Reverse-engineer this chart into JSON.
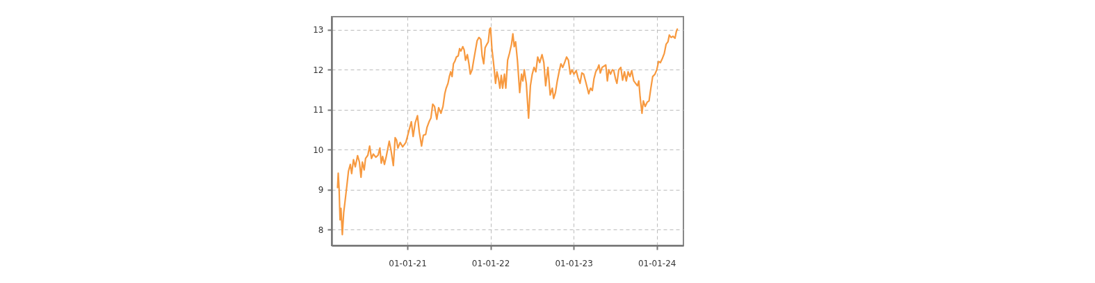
{
  "chart_data": {
    "type": "line",
    "xlim": [
      "2020-02-03",
      "2024-04-27"
    ],
    "xticks": [
      {
        "value": "2021-01-01",
        "label": "01-01-21"
      },
      {
        "value": "2022-01-01",
        "label": "01-01-22"
      },
      {
        "value": "2023-01-01",
        "label": "01-01-23"
      },
      {
        "value": "2024-01-01",
        "label": "01-01-24"
      }
    ],
    "ylim": [
      7.6,
      13.33
    ],
    "yticks": [
      8,
      9,
      10,
      11,
      12,
      13
    ],
    "grid": true,
    "line_style": "solid",
    "x": [
      "2020-02-29",
      "2020-03-03",
      "2020-03-07",
      "2020-03-11",
      "2020-03-15",
      "2020-03-21",
      "2020-03-27",
      "2020-04-02",
      "2020-04-09",
      "2020-04-17",
      "2020-04-25",
      "2020-05-01",
      "2020-05-09",
      "2020-05-17",
      "2020-05-27",
      "2020-06-04",
      "2020-06-11",
      "2020-06-17",
      "2020-06-25",
      "2020-07-01",
      "2020-07-11",
      "2020-07-19",
      "2020-07-27",
      "2020-08-04",
      "2020-08-15",
      "2020-08-25",
      "2020-09-02",
      "2020-09-08",
      "2020-09-14",
      "2020-09-22",
      "2020-09-30",
      "2020-10-13",
      "2020-10-21",
      "2020-10-31",
      "2020-11-08",
      "2020-11-14",
      "2020-11-20",
      "2020-11-30",
      "2020-12-11",
      "2020-12-25",
      "2021-01-06",
      "2021-01-18",
      "2021-01-26",
      "2021-02-04",
      "2021-02-14",
      "2021-02-22",
      "2021-03-04",
      "2021-03-12",
      "2021-03-22",
      "2021-03-28",
      "2021-04-06",
      "2021-04-14",
      "2021-04-22",
      "2021-04-30",
      "2021-05-10",
      "2021-05-18",
      "2021-05-28",
      "2021-06-06",
      "2021-06-14",
      "2021-06-20",
      "2021-06-28",
      "2021-07-04",
      "2021-07-10",
      "2021-07-16",
      "2021-07-22",
      "2021-07-28",
      "2021-08-04",
      "2021-08-12",
      "2021-08-18",
      "2021-08-24",
      "2021-09-01",
      "2021-09-07",
      "2021-09-13",
      "2021-09-21",
      "2021-09-28",
      "2021-10-04",
      "2021-10-12",
      "2021-10-18",
      "2021-10-26",
      "2021-11-03",
      "2021-11-11",
      "2021-11-19",
      "2021-11-25",
      "2021-12-02",
      "2021-12-08",
      "2021-12-16",
      "2021-12-22",
      "2021-12-28",
      "2022-01-01",
      "2022-01-07",
      "2022-01-15",
      "2022-01-23",
      "2022-01-29",
      "2022-02-05",
      "2022-02-11",
      "2022-02-17",
      "2022-02-23",
      "2022-03-03",
      "2022-03-09",
      "2022-03-17",
      "2022-03-25",
      "2022-04-03",
      "2022-04-09",
      "2022-04-15",
      "2022-04-21",
      "2022-04-29",
      "2022-05-09",
      "2022-05-17",
      "2022-05-23",
      "2022-05-29",
      "2022-06-07",
      "2022-06-17",
      "2022-06-25",
      "2022-07-03",
      "2022-07-11",
      "2022-07-19",
      "2022-07-27",
      "2022-08-05",
      "2022-08-15",
      "2022-08-23",
      "2022-08-31",
      "2022-09-10",
      "2022-09-20",
      "2022-09-29",
      "2022-10-05",
      "2022-10-13",
      "2022-10-21",
      "2022-10-29",
      "2022-11-06",
      "2022-11-14",
      "2022-11-22",
      "2022-12-01",
      "2022-12-09",
      "2022-12-17",
      "2022-12-25",
      "2023-01-02",
      "2023-01-12",
      "2023-01-20",
      "2023-01-29",
      "2023-02-06",
      "2023-02-14",
      "2023-02-22",
      "2023-03-02",
      "2023-03-08",
      "2023-03-16",
      "2023-03-24",
      "2023-03-31",
      "2023-04-08",
      "2023-04-16",
      "2023-04-22",
      "2023-04-28",
      "2023-05-06",
      "2023-05-14",
      "2023-05-22",
      "2023-05-29",
      "2023-06-04",
      "2023-06-12",
      "2023-06-20",
      "2023-06-26",
      "2023-07-04",
      "2023-07-10",
      "2023-07-18",
      "2023-07-27",
      "2023-08-04",
      "2023-08-12",
      "2023-08-20",
      "2023-08-28",
      "2023-09-05",
      "2023-09-13",
      "2023-09-22",
      "2023-09-30",
      "2023-10-08",
      "2023-10-14",
      "2023-10-20",
      "2023-10-28",
      "2023-11-03",
      "2023-11-11",
      "2023-11-20",
      "2023-11-28",
      "2023-12-06",
      "2023-12-14",
      "2023-12-24",
      "2024-01-01",
      "2024-01-09",
      "2024-01-17",
      "2024-01-26",
      "2024-02-03",
      "2024-02-11",
      "2024-02-19",
      "2024-02-25",
      "2024-03-04",
      "2024-03-12",
      "2024-03-21",
      "2024-03-27",
      "2024-03-31"
    ],
    "series": [
      {
        "color": "#f7993f",
        "values": [
          9.05,
          9.41,
          9.0,
          8.24,
          8.53,
          7.87,
          8.42,
          8.71,
          9.05,
          9.46,
          9.63,
          9.4,
          9.75,
          9.57,
          9.85,
          9.69,
          9.31,
          9.69,
          9.49,
          9.78,
          9.86,
          10.09,
          9.78,
          9.89,
          9.81,
          9.86,
          10.04,
          9.66,
          9.83,
          9.63,
          9.83,
          10.21,
          9.98,
          9.6,
          10.3,
          10.24,
          10.04,
          10.18,
          10.07,
          10.18,
          10.44,
          10.7,
          10.33,
          10.67,
          10.85,
          10.44,
          10.09,
          10.36,
          10.38,
          10.56,
          10.7,
          10.79,
          11.14,
          11.08,
          10.76,
          11.05,
          10.91,
          11.08,
          11.4,
          11.54,
          11.66,
          11.83,
          11.95,
          11.83,
          12.15,
          12.21,
          12.32,
          12.35,
          12.53,
          12.47,
          12.58,
          12.5,
          12.24,
          12.38,
          12.15,
          11.89,
          12.0,
          12.21,
          12.47,
          12.73,
          12.81,
          12.76,
          12.35,
          12.15,
          12.55,
          12.64,
          12.7,
          13.02,
          13.05,
          12.53,
          12.12,
          11.66,
          11.95,
          11.77,
          11.54,
          11.86,
          11.54,
          11.89,
          11.54,
          12.24,
          12.41,
          12.64,
          12.9,
          12.58,
          12.7,
          12.24,
          11.43,
          11.89,
          11.72,
          12.0,
          11.66,
          10.79,
          11.6,
          11.89,
          12.06,
          11.95,
          12.32,
          12.18,
          12.38,
          12.18,
          11.6,
          12.06,
          11.37,
          11.54,
          11.28,
          11.43,
          11.72,
          11.95,
          12.15,
          12.06,
          12.18,
          12.32,
          12.24,
          11.89,
          12.0,
          11.89,
          11.98,
          11.8,
          11.66,
          11.92,
          11.89,
          11.72,
          11.54,
          11.4,
          11.54,
          11.48,
          11.77,
          11.95,
          12.03,
          12.12,
          11.92,
          12.06,
          12.09,
          12.12,
          11.72,
          12.0,
          11.89,
          12.0,
          11.98,
          11.77,
          11.66,
          12.0,
          12.06,
          11.74,
          11.95,
          11.72,
          11.95,
          11.83,
          11.98,
          11.72,
          11.66,
          11.6,
          11.72,
          11.31,
          10.91,
          11.22,
          11.08,
          11.19,
          11.22,
          11.54,
          11.83,
          11.89,
          12.0,
          12.21,
          12.18,
          12.29,
          12.41,
          12.64,
          12.7,
          12.87,
          12.81,
          12.84,
          12.79,
          12.96,
          13.02
        ]
      }
    ]
  }
}
